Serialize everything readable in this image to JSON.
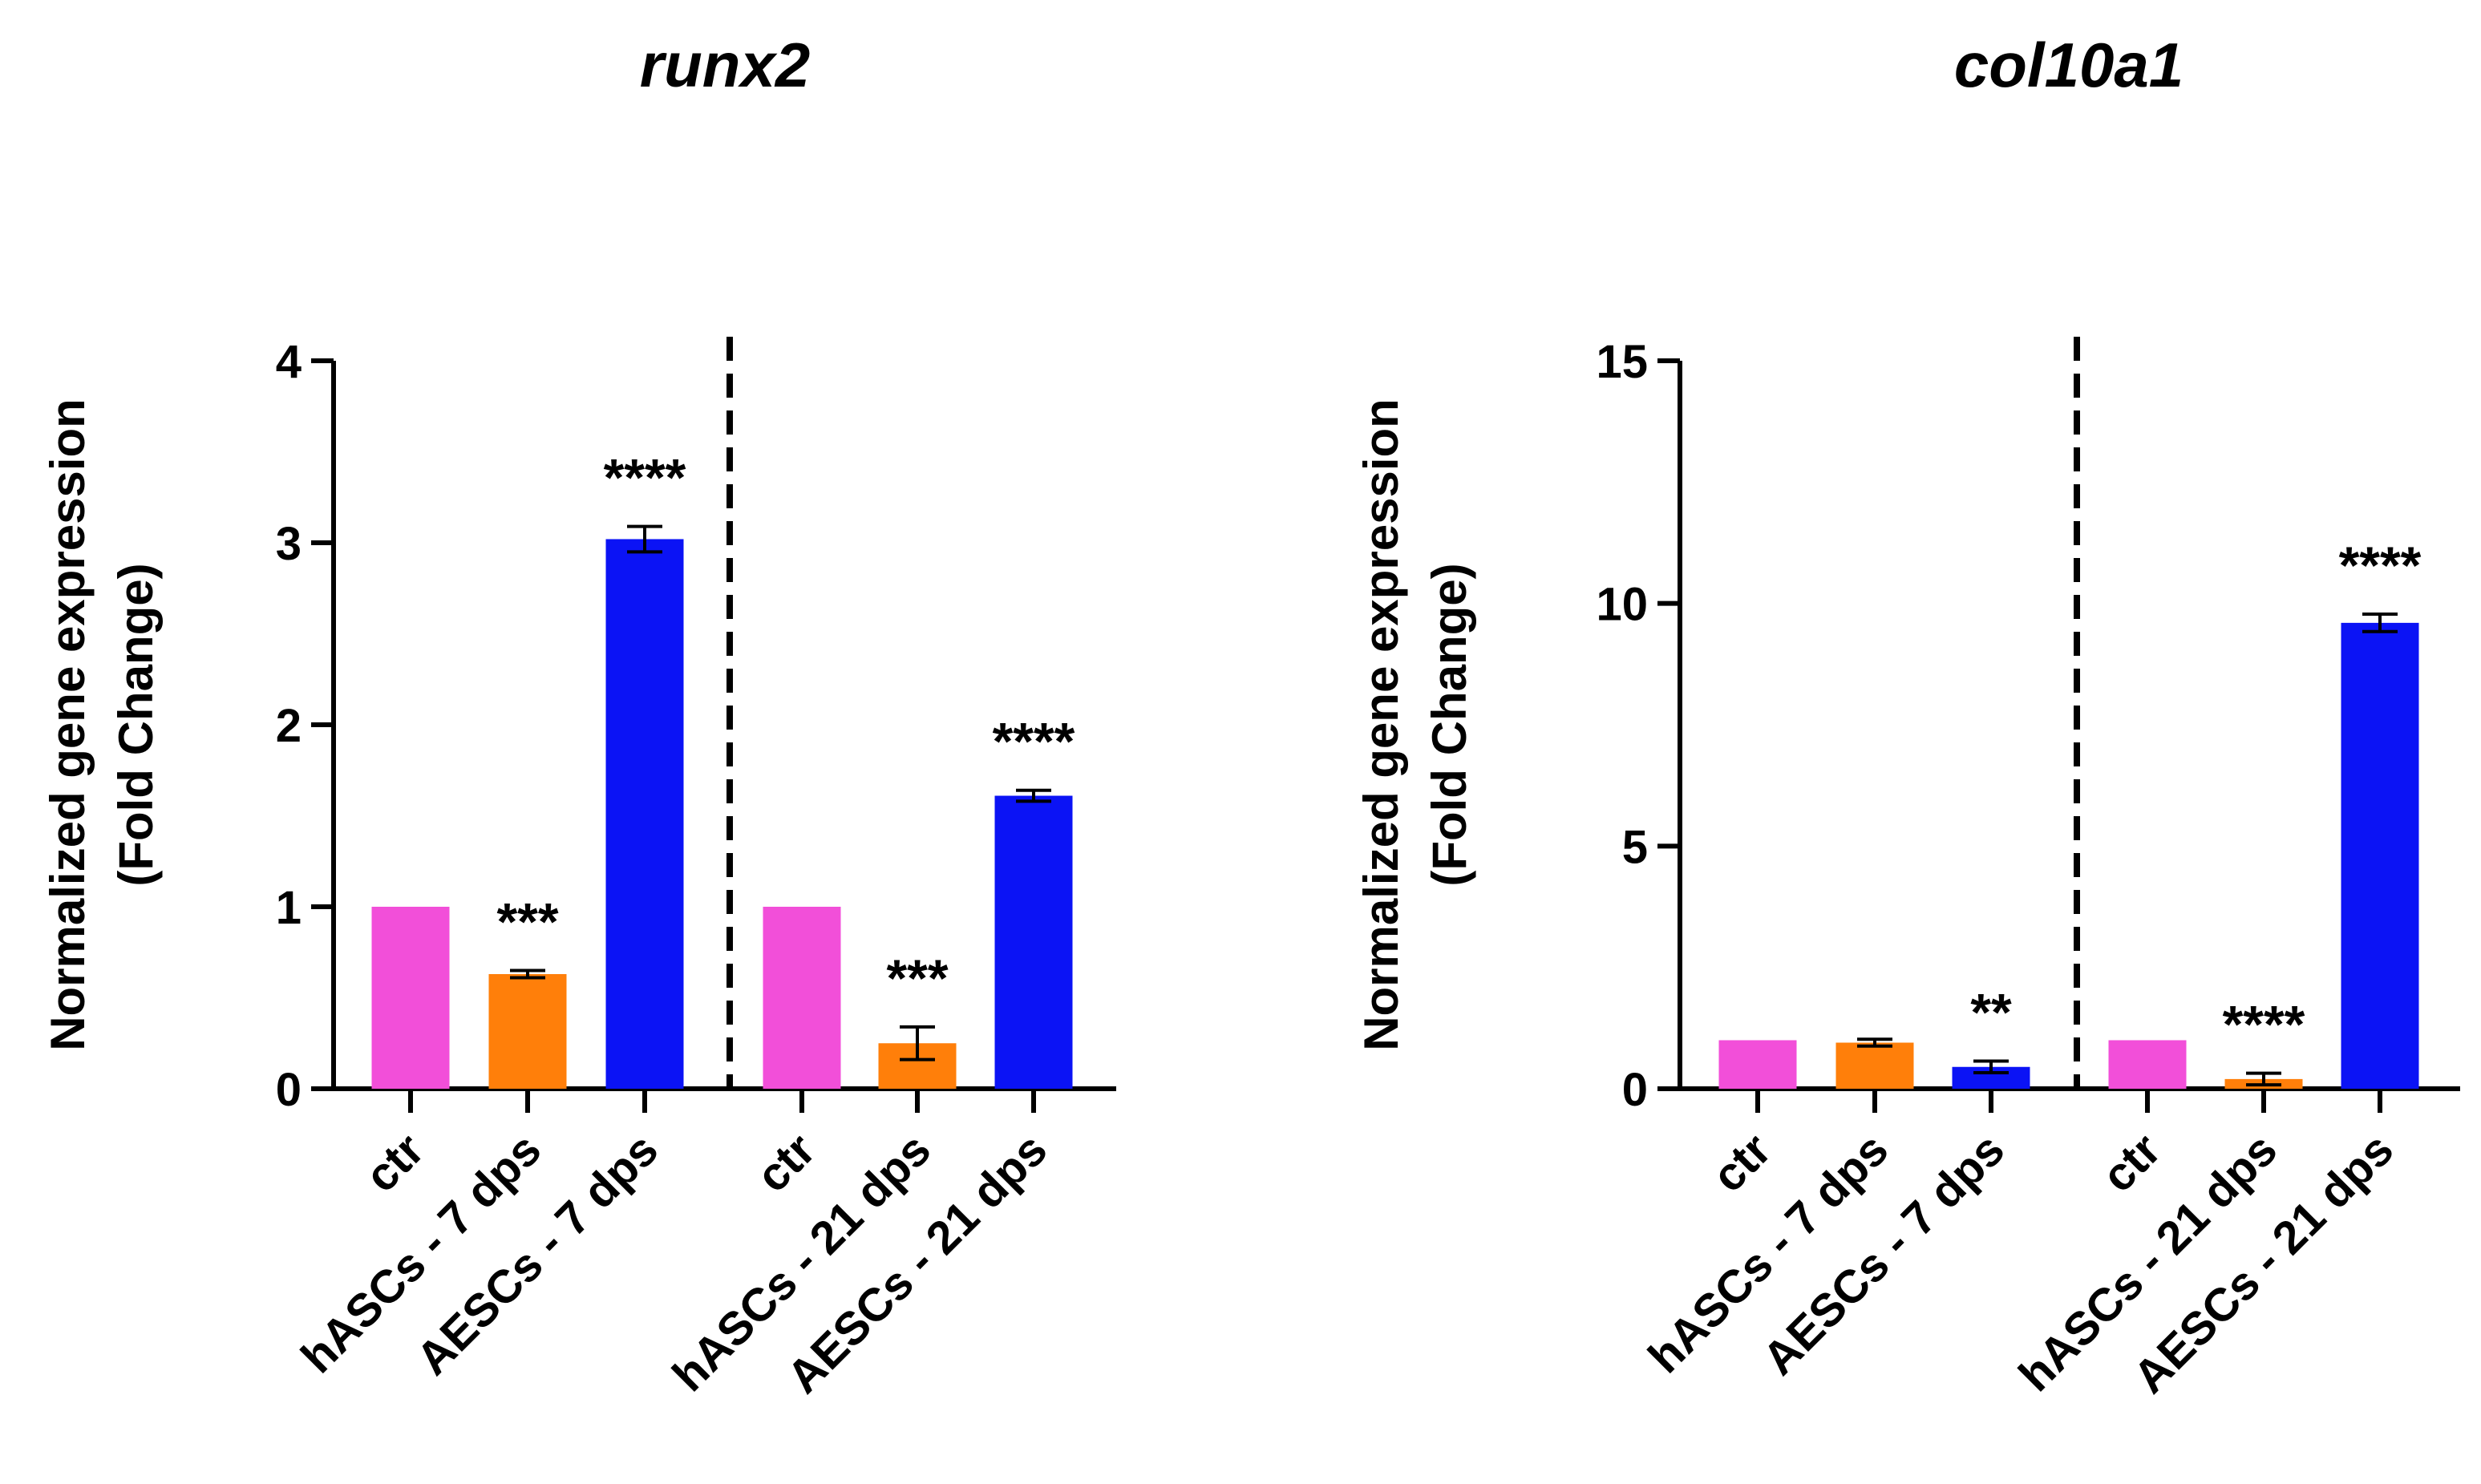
{
  "chart_data": [
    {
      "type": "bar",
      "title": "runx2",
      "xlabel": "",
      "ylabel": "Normalized gene expression",
      "ylabel_line2": "(Fold Change)",
      "ylim": [
        0,
        4
      ],
      "yticks": [
        0,
        1,
        2,
        3,
        4
      ],
      "grid": false,
      "categories": [
        "ctr",
        "hASCs - 7 dps",
        "AESCs - 7 dps",
        "ctr",
        "hASCs - 21 dps",
        "AESCs - 21 dps"
      ],
      "values": [
        1.0,
        0.63,
        3.02,
        1.0,
        0.25,
        1.61
      ],
      "errors": [
        0.0,
        0.02,
        0.07,
        0.0,
        0.09,
        0.03
      ],
      "colors": [
        "#f24fd9",
        "#ff7f0a",
        "#0b13f5",
        "#f24fd9",
        "#ff7f0a",
        "#0b13f5"
      ],
      "significance": [
        "",
        "***",
        "****",
        "",
        "***",
        "****"
      ],
      "group_divider_after_index": 2
    },
    {
      "type": "bar",
      "title": "col10a1",
      "xlabel": "",
      "ylabel": "Normalized gene expression",
      "ylabel_line2": "(Fold Change)",
      "ylim": [
        0,
        15
      ],
      "yticks": [
        0,
        5,
        10,
        15
      ],
      "grid": false,
      "categories": [
        "ctr",
        "hASCs - 7 dps",
        "AESCs - 7 dps",
        "ctr",
        "hASCs - 21 dps",
        "AESCs - 21 dps"
      ],
      "values": [
        1.0,
        0.95,
        0.45,
        1.0,
        0.2,
        9.6
      ],
      "errors": [
        0.0,
        0.07,
        0.12,
        0.0,
        0.12,
        0.18
      ],
      "colors": [
        "#f24fd9",
        "#ff7f0a",
        "#0b13f5",
        "#f24fd9",
        "#ff7f0a",
        "#0b13f5"
      ],
      "significance": [
        "",
        "",
        "**",
        "",
        "****",
        "****"
      ],
      "group_divider_after_index": 2
    }
  ]
}
